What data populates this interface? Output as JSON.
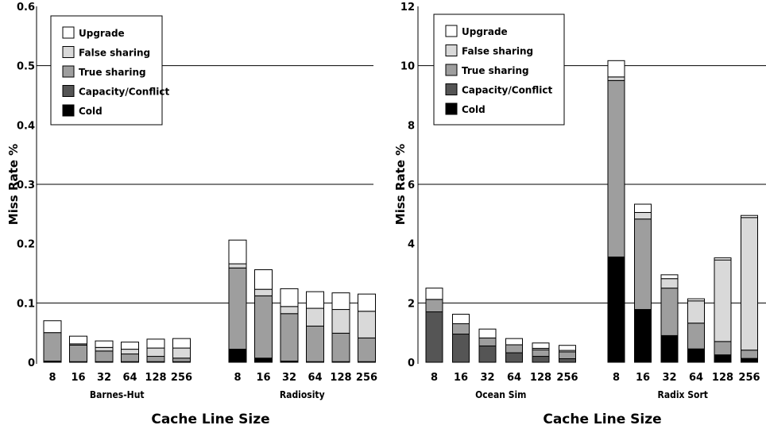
{
  "legend": [
    "Upgrade",
    "False sharing",
    "True sharing",
    "Capacity/Conflict",
    "Cold"
  ],
  "colors": {
    "Upgrade": "#ffffff",
    "False sharing": "#d9d9d9",
    "True sharing": "#9e9e9e",
    "Capacity/Conflict": "#555555",
    "Cold": "#000000"
  },
  "chart_data": [
    {
      "type": "bar",
      "stacked": true,
      "ylabel": "Miss Rate %",
      "xlabel": "Cache Line Size",
      "ylim": [
        0,
        0.6
      ],
      "yticks": [
        "0",
        "0.1",
        "0.2",
        "0.3",
        "0.4",
        "0.5",
        "0.6"
      ],
      "gridlines": [
        0.1,
        0.3,
        0.5
      ],
      "legend_position": "top-left",
      "groups": [
        {
          "name": "Barnes-Hut",
          "categories": [
            "8",
            "16",
            "32",
            "64",
            "128",
            "256"
          ],
          "series": [
            {
              "name": "Cold",
              "values": [
                0.002,
                0.001,
                0.001,
                0.001,
                0.001,
                0.001
              ]
            },
            {
              "name": "Capacity/Conflict",
              "values": [
                0.0,
                0.0,
                0.0,
                0.0,
                0.0,
                0.0
              ]
            },
            {
              "name": "True sharing",
              "values": [
                0.048,
                0.028,
                0.018,
                0.013,
                0.009,
                0.006
              ]
            },
            {
              "name": "False sharing",
              "values": [
                0.0,
                0.002,
                0.006,
                0.008,
                0.014,
                0.017
              ]
            },
            {
              "name": "Upgrade",
              "values": [
                0.02,
                0.013,
                0.011,
                0.012,
                0.015,
                0.016
              ]
            }
          ]
        },
        {
          "name": "Radiosity",
          "categories": [
            "8",
            "16",
            "32",
            "64",
            "128",
            "256"
          ],
          "series": [
            {
              "name": "Cold",
              "values": [
                0.022,
                0.007,
                0.002,
                0.001,
                0.001,
                0.001
              ]
            },
            {
              "name": "Capacity/Conflict",
              "values": [
                0.0,
                0.0,
                0.0,
                0.0,
                0.0,
                0.0
              ]
            },
            {
              "name": "True sharing",
              "values": [
                0.137,
                0.105,
                0.08,
                0.06,
                0.048,
                0.04
              ]
            },
            {
              "name": "False sharing",
              "values": [
                0.007,
                0.011,
                0.012,
                0.03,
                0.04,
                0.045
              ]
            },
            {
              "name": "Upgrade",
              "values": [
                0.04,
                0.033,
                0.03,
                0.028,
                0.028,
                0.029
              ]
            }
          ]
        }
      ]
    },
    {
      "type": "bar",
      "stacked": true,
      "ylabel": "Miss Rate %",
      "xlabel": "Cache Line Size",
      "ylim": [
        0,
        12
      ],
      "yticks": [
        "0",
        "2",
        "4",
        "6",
        "8",
        "10",
        "12"
      ],
      "gridlines": [
        2,
        6,
        10
      ],
      "legend_position": "top-left",
      "groups": [
        {
          "name": "Ocean Sim",
          "categories": [
            "8",
            "16",
            "32",
            "64",
            "128",
            "256"
          ],
          "series": [
            {
              "name": "Cold",
              "values": [
                0.0,
                0.0,
                0.0,
                0.0,
                0.0,
                0.0
              ]
            },
            {
              "name": "Capacity/Conflict",
              "values": [
                1.7,
                0.95,
                0.55,
                0.32,
                0.2,
                0.12
              ]
            },
            {
              "name": "True sharing",
              "values": [
                0.42,
                0.35,
                0.27,
                0.27,
                0.22,
                0.23
              ]
            },
            {
              "name": "False sharing",
              "values": [
                0.0,
                0.0,
                0.0,
                0.0,
                0.05,
                0.05
              ]
            },
            {
              "name": "Upgrade",
              "values": [
                0.38,
                0.32,
                0.3,
                0.21,
                0.18,
                0.17
              ]
            }
          ]
        },
        {
          "name": "Radix Sort",
          "categories": [
            "8",
            "16",
            "32",
            "64",
            "128",
            "256"
          ],
          "series": [
            {
              "name": "Cold",
              "values": [
                3.55,
                1.78,
                0.9,
                0.45,
                0.25,
                0.13
              ]
            },
            {
              "name": "Capacity/Conflict",
              "values": [
                0.0,
                0.0,
                0.0,
                0.0,
                0.0,
                0.0
              ]
            },
            {
              "name": "True sharing",
              "values": [
                5.95,
                3.05,
                1.6,
                0.87,
                0.45,
                0.28
              ]
            },
            {
              "name": "False sharing",
              "values": [
                0.12,
                0.22,
                0.32,
                0.75,
                2.75,
                4.47
              ]
            },
            {
              "name": "Upgrade",
              "values": [
                0.55,
                0.28,
                0.13,
                0.07,
                0.07,
                0.07
              ]
            }
          ]
        }
      ]
    }
  ]
}
